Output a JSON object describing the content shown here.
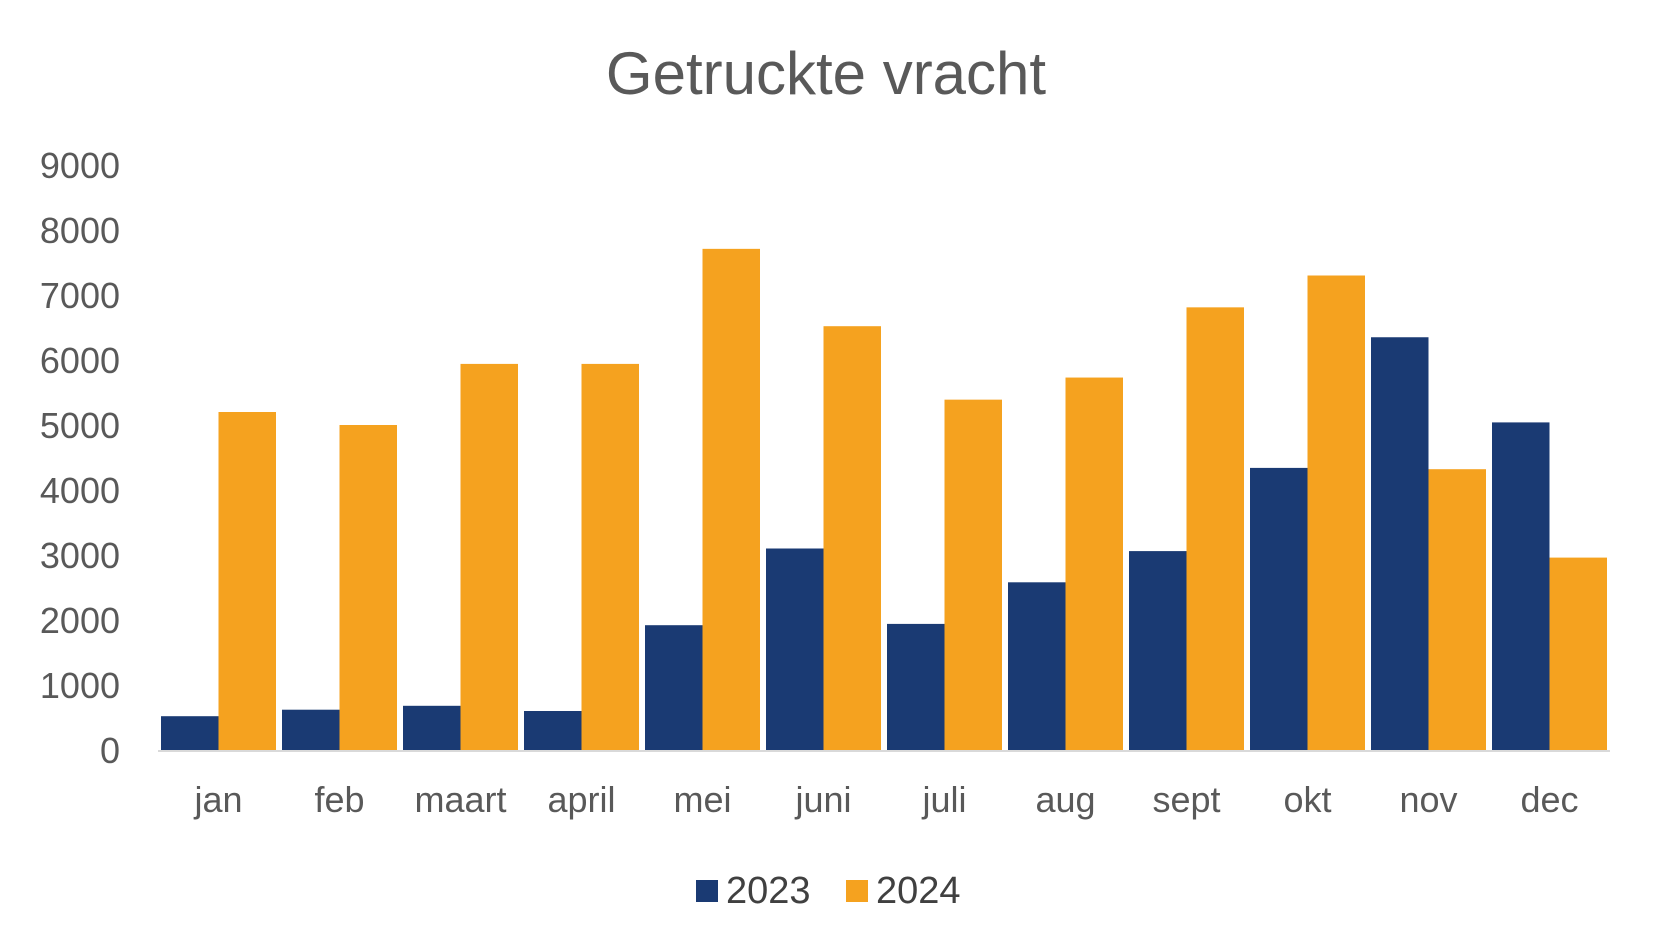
{
  "chart_data": {
    "type": "bar",
    "title": "Getruckte vracht",
    "xlabel": "",
    "ylabel": "",
    "ylim": [
      0,
      9000
    ],
    "yticks": [
      0,
      1000,
      2000,
      3000,
      4000,
      5000,
      6000,
      7000,
      8000,
      9000
    ],
    "grid": false,
    "legend": "bottom",
    "categories": [
      "jan",
      "feb",
      "maart",
      "april",
      "mei",
      "juni",
      "juli",
      "aug",
      "sept",
      "okt",
      "nov",
      "dec"
    ],
    "series": [
      {
        "name": "2023",
        "color": "#1a3a73",
        "values": [
          520,
          620,
          680,
          600,
          1920,
          3100,
          1940,
          2580,
          3060,
          4340,
          6350,
          5040
        ]
      },
      {
        "name": "2024",
        "color": "#f5a21f",
        "values": [
          5200,
          5000,
          5940,
          5940,
          7710,
          6520,
          5390,
          5730,
          6810,
          7300,
          4320,
          2960
        ]
      }
    ]
  }
}
